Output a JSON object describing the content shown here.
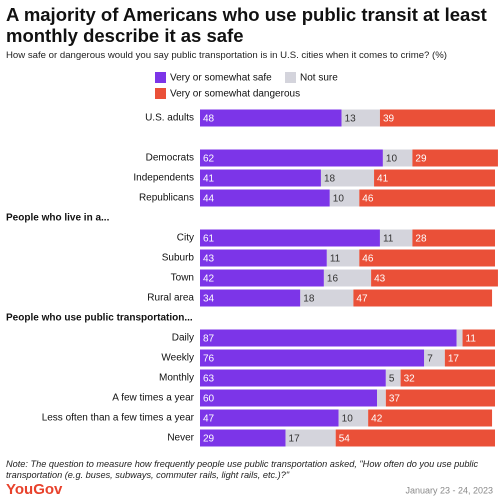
{
  "chart_data": {
    "type": "stacked-bar",
    "orientation": "horizontal",
    "title": "A majority of Americans who use public transit at least monthly describe it as safe",
    "subtitle": "How safe or dangerous would you say public transportation is in U.S. cities when it comes to crime? (%)",
    "groups": [
      {
        "categories": [
          "U.S. adults"
        ]
      },
      {
        "categories": [
          "Democrats",
          "Independents",
          "Republicans"
        ]
      },
      {
        "title": "People who live in a...",
        "categories": [
          "City",
          "Suburb",
          "Town",
          "Rural area"
        ]
      },
      {
        "title": "People who use public transportation...",
        "categories": [
          "Daily",
          "Weekly",
          "Monthly",
          "A few times a year",
          "Less often than a few times a year",
          "Never"
        ]
      }
    ],
    "series": [
      {
        "name": "Very or somewhat safe",
        "color": "#7c35e8",
        "values": [
          48,
          62,
          41,
          44,
          61,
          43,
          42,
          34,
          87,
          76,
          63,
          60,
          47,
          29
        ]
      },
      {
        "name": "Not sure",
        "color": "#d4d4dc",
        "values": [
          13,
          10,
          18,
          10,
          11,
          11,
          16,
          18,
          2,
          7,
          5,
          3,
          10,
          17
        ]
      },
      {
        "name": "Very or somewhat dangerous",
        "color": "#ea5038",
        "values": [
          39,
          29,
          41,
          46,
          28,
          46,
          43,
          47,
          11,
          17,
          32,
          37,
          42,
          54
        ]
      }
    ],
    "xlim": [
      0,
      100
    ],
    "note": "Note: The question to measure how frequently people use public transportation asked, \"How often do you use public transportation (e.g. buses, subways, commuter rails, light rails, etc.)?\"",
    "source": "YouGov",
    "date": "January 23 - 24, 2023"
  }
}
